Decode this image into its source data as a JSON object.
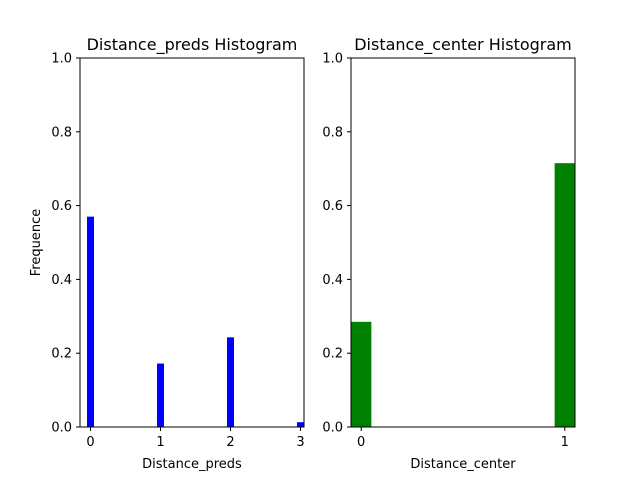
{
  "chart_data": [
    {
      "type": "bar",
      "title": "Distance_preds Histogram",
      "xlabel": "Distance_preds",
      "ylabel": "Frequence",
      "x": [
        0,
        1,
        2,
        3
      ],
      "values": [
        0.57,
        0.172,
        0.243,
        0.013
      ],
      "bar_width": 0.1,
      "xlim": [
        -0.15,
        3.05
      ],
      "ylim": [
        0,
        1.0
      ],
      "xticks": [
        0,
        1,
        2,
        3
      ],
      "yticks": [
        0.0,
        0.2,
        0.4,
        0.6,
        0.8,
        1.0
      ],
      "ytick_labels": [
        "0.0",
        "0.2",
        "0.4",
        "0.6",
        "0.8",
        "1.0"
      ],
      "color": "#0000ff",
      "grid": false
    },
    {
      "type": "bar",
      "title": "Distance_center Histogram",
      "xlabel": "Distance_center",
      "ylabel": "",
      "x": [
        0,
        1
      ],
      "values": [
        0.285,
        0.715
      ],
      "bar_width": 0.1,
      "xlim": [
        -0.05,
        1.05
      ],
      "ylim": [
        0,
        1.0
      ],
      "xticks": [
        0,
        1
      ],
      "yticks": [
        0.0,
        0.2,
        0.4,
        0.6,
        0.8,
        1.0
      ],
      "ytick_labels": [
        "0.0",
        "0.2",
        "0.4",
        "0.6",
        "0.8",
        "1.0"
      ],
      "color": "#008000",
      "grid": false
    }
  ]
}
